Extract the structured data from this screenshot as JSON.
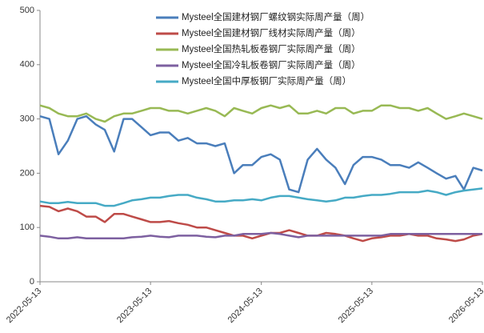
{
  "chart_data": {
    "type": "line",
    "x": [
      "2022-05-13",
      "2022-06-13",
      "2022-07-13",
      "2022-08-13",
      "2022-09-13",
      "2022-10-13",
      "2022-11-13",
      "2022-12-13",
      "2023-01-13",
      "2023-02-13",
      "2023-03-13",
      "2023-04-13",
      "2023-05-13",
      "2023-06-13",
      "2023-07-13",
      "2023-08-13",
      "2023-09-13",
      "2023-10-13",
      "2023-11-13",
      "2023-12-13",
      "2024-01-13",
      "2024-02-13",
      "2024-03-13",
      "2024-04-13",
      "2024-05-13",
      "2024-06-13",
      "2024-07-13",
      "2024-08-13",
      "2024-09-13",
      "2024-10-13",
      "2024-11-13",
      "2024-12-13",
      "2025-01-13",
      "2025-02-13",
      "2025-03-13",
      "2025-04-13",
      "2025-05-13",
      "2025-06-13",
      "2025-07-13",
      "2025-08-13",
      "2025-09-13",
      "2025-10-13",
      "2025-11-13",
      "2025-12-13",
      "2026-01-13",
      "2026-02-13",
      "2026-03-13",
      "2026-04-13",
      "2026-05-13"
    ],
    "series": [
      {
        "name": "Mysteel全国建材钢厂螺纹钢实际周产量（周）",
        "color": "#4a7ebb",
        "values": [
          305,
          300,
          235,
          260,
          300,
          305,
          290,
          280,
          240,
          300,
          300,
          285,
          270,
          275,
          275,
          260,
          265,
          255,
          255,
          250,
          255,
          200,
          215,
          215,
          230,
          235,
          225,
          170,
          165,
          225,
          245,
          225,
          210,
          180,
          215,
          230,
          230,
          225,
          215,
          215,
          210,
          220,
          210,
          200,
          190,
          195,
          170,
          210,
          205
        ]
      },
      {
        "name": "Mysteel全国建材钢厂线材实际周产量（周）",
        "color": "#be4b48",
        "values": [
          140,
          138,
          130,
          135,
          130,
          120,
          120,
          110,
          125,
          125,
          120,
          115,
          110,
          110,
          112,
          108,
          105,
          100,
          100,
          95,
          90,
          85,
          85,
          80,
          85,
          90,
          90,
          95,
          90,
          85,
          85,
          90,
          88,
          85,
          80,
          75,
          80,
          82,
          85,
          85,
          88,
          85,
          85,
          80,
          78,
          75,
          78,
          85,
          88
        ]
      },
      {
        "name": "Mysteel全国热轧板卷钢厂实际周产量（周）",
        "color": "#98b954",
        "values": [
          325,
          320,
          310,
          305,
          305,
          310,
          300,
          295,
          305,
          310,
          310,
          315,
          320,
          320,
          315,
          315,
          310,
          315,
          320,
          315,
          305,
          320,
          315,
          310,
          320,
          325,
          320,
          325,
          310,
          310,
          315,
          310,
          320,
          320,
          310,
          315,
          315,
          325,
          325,
          320,
          320,
          315,
          320,
          310,
          300,
          305,
          310,
          305,
          300
        ]
      },
      {
        "name": "Mysteel全国冷轧板卷钢厂实际周产量（周）",
        "color": "#7d60a0",
        "values": [
          85,
          83,
          80,
          80,
          82,
          80,
          80,
          80,
          80,
          80,
          82,
          83,
          85,
          83,
          82,
          85,
          85,
          85,
          83,
          82,
          85,
          85,
          88,
          88,
          88,
          90,
          88,
          85,
          82,
          85,
          85,
          85,
          85,
          85,
          85,
          85,
          85,
          85,
          88,
          88,
          88,
          88,
          88,
          88,
          88,
          88,
          88,
          88,
          88
        ]
      },
      {
        "name": "Mysteel全国中厚板钢厂实际周产量（周）",
        "color": "#46aac5",
        "values": [
          148,
          145,
          145,
          147,
          145,
          145,
          145,
          140,
          140,
          145,
          150,
          152,
          155,
          155,
          158,
          160,
          160,
          155,
          152,
          148,
          148,
          150,
          150,
          152,
          150,
          155,
          158,
          158,
          155,
          152,
          150,
          148,
          150,
          155,
          155,
          158,
          160,
          160,
          162,
          165,
          165,
          165,
          168,
          165,
          160,
          165,
          168,
          170,
          172
        ]
      }
    ],
    "xlim": [
      "2022-05-13",
      "2026-05-13"
    ],
    "xticks": [
      "2022-05-13",
      "2023-05-13",
      "2024-05-13",
      "2025-05-13",
      "2026-05-13"
    ],
    "ylim": [
      0,
      500
    ],
    "yticks": [
      0,
      100,
      200,
      300,
      400,
      500
    ]
  }
}
